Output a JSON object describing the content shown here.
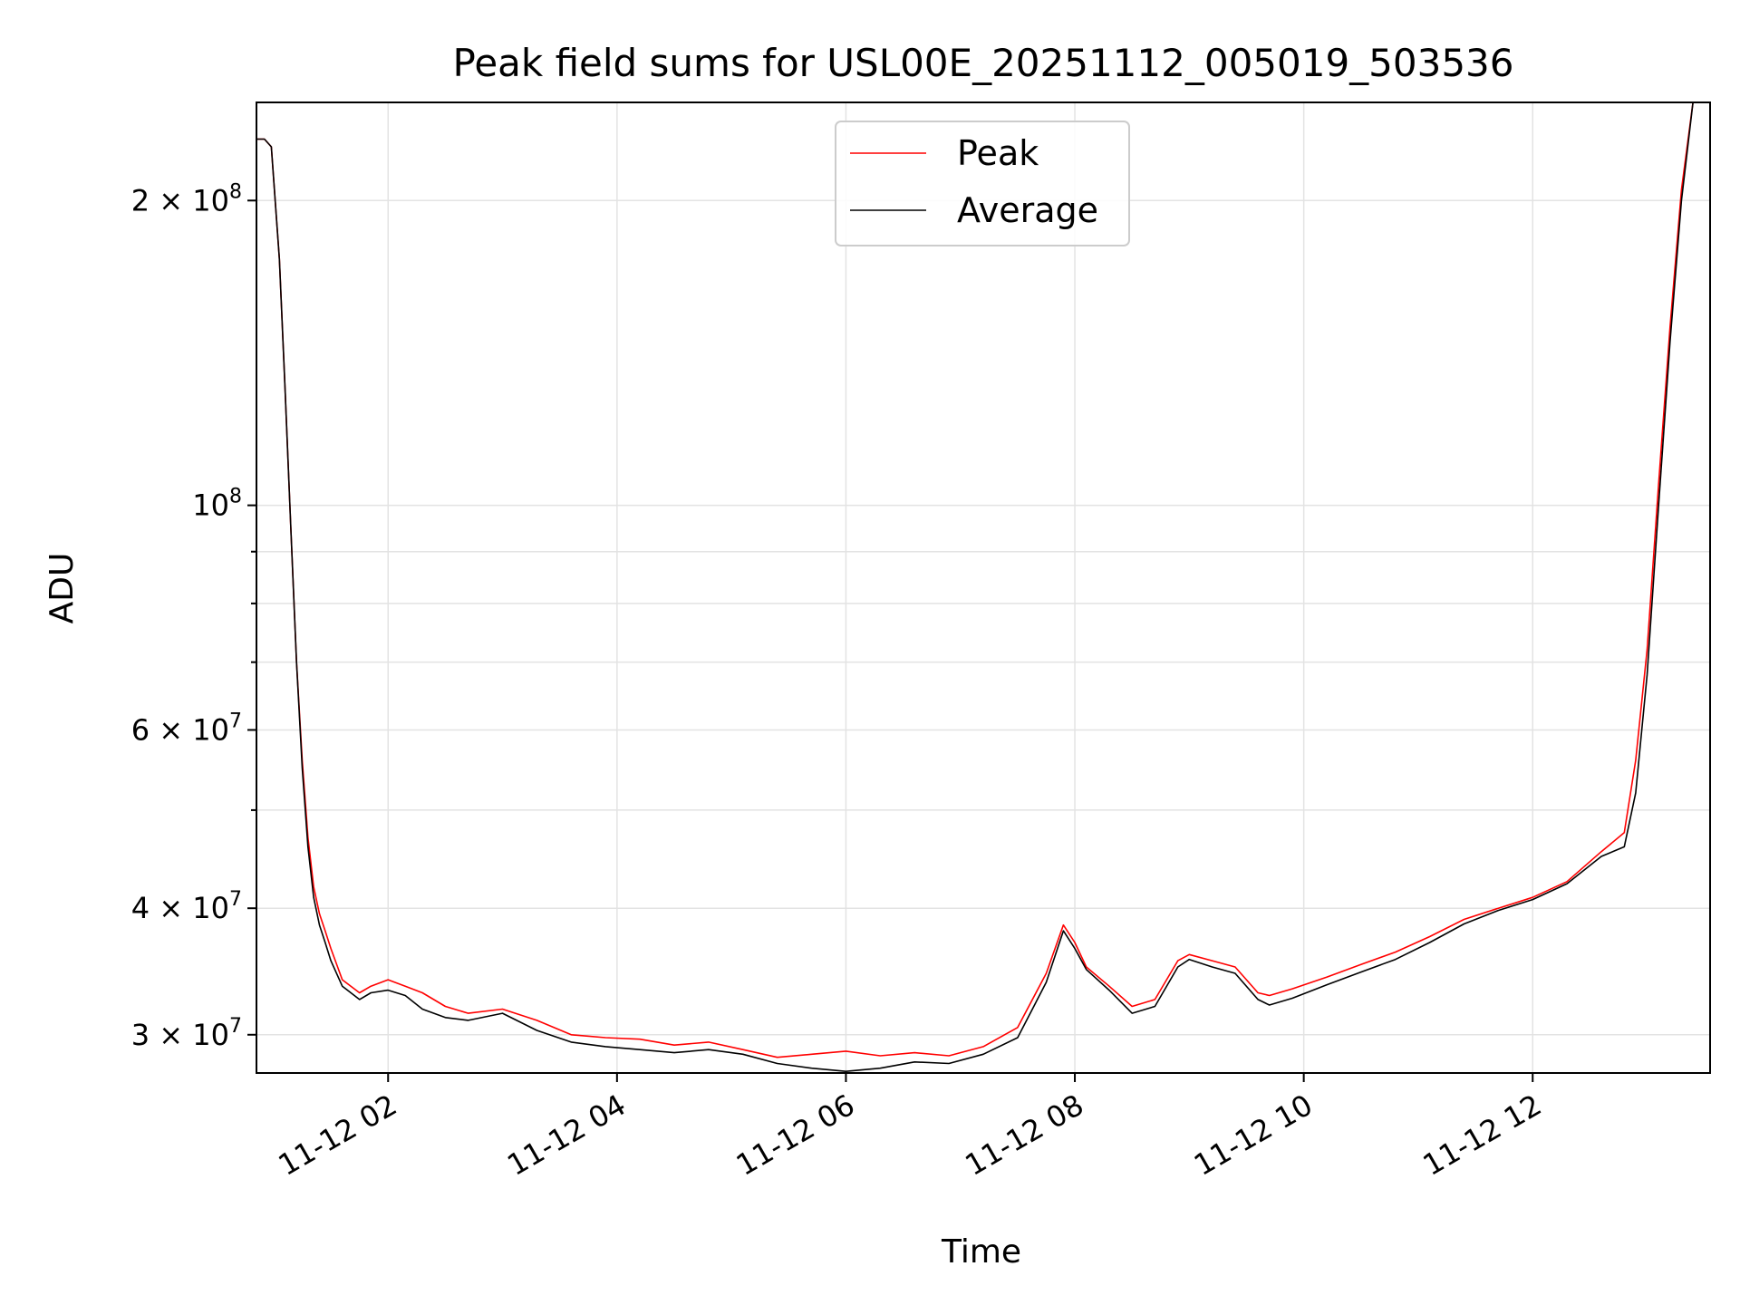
{
  "chart_data": {
    "type": "line",
    "title": "Peak field sums for USL00E_20251112_005019_503536",
    "xlabel": "Time",
    "ylabel": "ADU",
    "yscale": "log",
    "xlim_hours": [
      0.85,
      13.55
    ],
    "ylim": [
      27500000,
      250000000
    ],
    "grid": true,
    "legend_position": "upper-center",
    "x_tick_labels": [
      {
        "hour": 2,
        "label": "11-12 02"
      },
      {
        "hour": 4,
        "label": "11-12 04"
      },
      {
        "hour": 6,
        "label": "11-12 06"
      },
      {
        "hour": 8,
        "label": "11-12 08"
      },
      {
        "hour": 10,
        "label": "11-12 10"
      },
      {
        "hour": 12,
        "label": "11-12 12"
      }
    ],
    "y_tick_labels": [
      {
        "value": 30000000,
        "mantissa": "3",
        "times": "×",
        "base": "10",
        "exp": "7"
      },
      {
        "value": 40000000,
        "mantissa": "4",
        "times": "×",
        "base": "10",
        "exp": "7"
      },
      {
        "value": 60000000,
        "mantissa": "6",
        "times": "×",
        "base": "10",
        "exp": "7"
      },
      {
        "value": 100000000,
        "mantissa": "",
        "times": "",
        "base": "10",
        "exp": "8"
      },
      {
        "value": 200000000,
        "mantissa": "2",
        "times": "×",
        "base": "10",
        "exp": "8"
      }
    ],
    "minor_y_ticks": [
      50000000,
      70000000,
      80000000,
      90000000
    ],
    "series": [
      {
        "name": "Peak",
        "color": "#ff0000",
        "x_hours": [
          0.85,
          0.92,
          0.98,
          1.05,
          1.1,
          1.15,
          1.2,
          1.25,
          1.3,
          1.35,
          1.4,
          1.45,
          1.5,
          1.6,
          1.75,
          1.85,
          2.0,
          2.15,
          2.3,
          2.5,
          2.7,
          3.0,
          3.3,
          3.6,
          3.9,
          4.2,
          4.5,
          4.8,
          5.1,
          5.4,
          5.7,
          6.0,
          6.3,
          6.6,
          6.9,
          7.2,
          7.5,
          7.75,
          7.9,
          8.0,
          8.1,
          8.3,
          8.5,
          8.7,
          8.9,
          9.0,
          9.2,
          9.4,
          9.6,
          9.7,
          9.9,
          10.2,
          10.5,
          10.8,
          11.1,
          11.4,
          11.7,
          12.0,
          12.3,
          12.6,
          12.8,
          12.9,
          13.0,
          13.1,
          13.2,
          13.3,
          13.4,
          13.55
        ],
        "values": [
          230000000,
          230000000,
          226000000,
          175000000,
          130000000,
          95000000,
          70000000,
          56000000,
          47000000,
          42000000,
          39500000,
          38000000,
          36500000,
          34000000,
          33000000,
          33500000,
          34000000,
          33500000,
          33000000,
          32000000,
          31500000,
          31800000,
          31000000,
          30000000,
          29800000,
          29700000,
          29300000,
          29500000,
          29000000,
          28500000,
          28700000,
          28900000,
          28600000,
          28800000,
          28600000,
          29200000,
          30500000,
          34500000,
          38500000,
          37000000,
          35000000,
          33500000,
          32000000,
          32500000,
          35500000,
          36000000,
          35500000,
          35000000,
          33000000,
          32800000,
          33300000,
          34200000,
          35200000,
          36200000,
          37500000,
          39000000,
          40000000,
          41000000,
          42500000,
          45500000,
          47500000,
          56000000,
          72000000,
          105000000,
          150000000,
          205000000,
          250000000,
          250000000
        ]
      },
      {
        "name": "Average",
        "color": "#000000",
        "x_hours": [
          0.85,
          0.92,
          0.98,
          1.05,
          1.1,
          1.15,
          1.2,
          1.25,
          1.3,
          1.35,
          1.4,
          1.45,
          1.5,
          1.6,
          1.75,
          1.85,
          2.0,
          2.15,
          2.3,
          2.5,
          2.7,
          3.0,
          3.3,
          3.6,
          3.9,
          4.2,
          4.5,
          4.8,
          5.1,
          5.4,
          5.7,
          6.0,
          6.3,
          6.6,
          6.9,
          7.2,
          7.5,
          7.75,
          7.9,
          8.0,
          8.1,
          8.3,
          8.5,
          8.7,
          8.9,
          9.0,
          9.2,
          9.4,
          9.6,
          9.7,
          9.9,
          10.2,
          10.5,
          10.8,
          11.1,
          11.4,
          11.7,
          12.0,
          12.3,
          12.6,
          12.8,
          12.9,
          13.0,
          13.1,
          13.2,
          13.3,
          13.4,
          13.55
        ],
        "values": [
          230000000,
          230000000,
          226000000,
          175000000,
          130000000,
          95000000,
          70000000,
          55000000,
          46000000,
          41000000,
          38500000,
          37000000,
          35500000,
          33500000,
          32500000,
          33000000,
          33200000,
          32800000,
          31800000,
          31200000,
          31000000,
          31500000,
          30300000,
          29500000,
          29200000,
          29000000,
          28800000,
          29000000,
          28700000,
          28100000,
          27800000,
          27600000,
          27800000,
          28200000,
          28100000,
          28700000,
          29800000,
          33800000,
          38000000,
          36500000,
          34800000,
          33200000,
          31500000,
          32000000,
          35000000,
          35600000,
          35000000,
          34500000,
          32500000,
          32100000,
          32600000,
          33600000,
          34600000,
          35600000,
          37000000,
          38600000,
          39800000,
          40800000,
          42300000,
          45000000,
          46000000,
          52000000,
          68000000,
          100000000,
          145000000,
          200000000,
          250000000,
          250000000
        ]
      }
    ]
  }
}
